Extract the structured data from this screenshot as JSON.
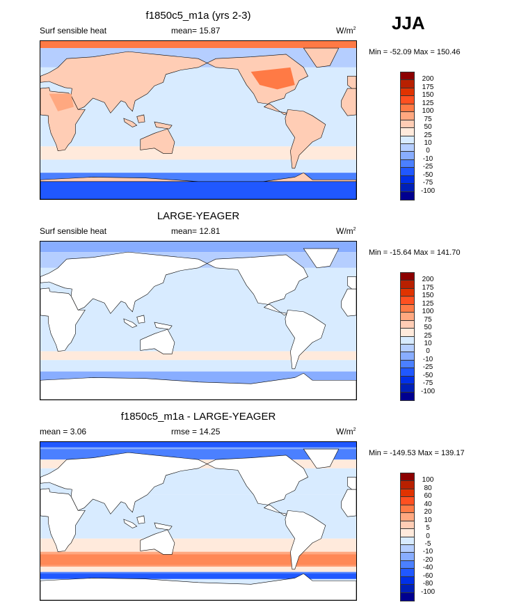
{
  "season": "JJA",
  "colors": [
    "#8c0000",
    "#b82000",
    "#e03300",
    "#ff5020",
    "#ff7a45",
    "#ffa880",
    "#ffcdb5",
    "#ffeadc",
    "#d8ebff",
    "#b5ceff",
    "#88adff",
    "#4b80ff",
    "#2058ff",
    "#0030e8",
    "#0020b8",
    "#000090"
  ],
  "panels": [
    {
      "title": "f1850c5_m1a (yrs 2-3)",
      "left": "Surf sensible heat",
      "center": "mean=  15.87",
      "units": "W/m",
      "units_sup": "2",
      "minmax": "Min = -52.09 Max = 150.46",
      "levels": [
        "200",
        "175",
        "150",
        "125",
        "100",
        "75",
        "50",
        "25",
        "10",
        "0",
        "-10",
        "-25",
        "-50",
        "-75",
        "-100"
      ]
    },
    {
      "title": "LARGE-YEAGER",
      "left": "Surf sensible heat",
      "center": "mean=  12.81",
      "units": "W/m",
      "units_sup": "2",
      "minmax": "Min = -15.64 Max = 141.70",
      "levels": [
        "200",
        "175",
        "150",
        "125",
        "100",
        "75",
        "50",
        "25",
        "10",
        "0",
        "-10",
        "-25",
        "-50",
        "-75",
        "-100"
      ]
    },
    {
      "title": "f1850c5_m1a - LARGE-YEAGER",
      "left": "mean =   3.06",
      "center": "rmse =  14.25",
      "units": "W/m",
      "units_sup": "2",
      "minmax": "Min = -149.53 Max = 139.17",
      "levels": [
        "100",
        "80",
        "60",
        "40",
        "20",
        "10",
        "5",
        "0",
        "-5",
        "-10",
        "-20",
        "-40",
        "-60",
        "-80",
        "-100"
      ]
    }
  ]
}
